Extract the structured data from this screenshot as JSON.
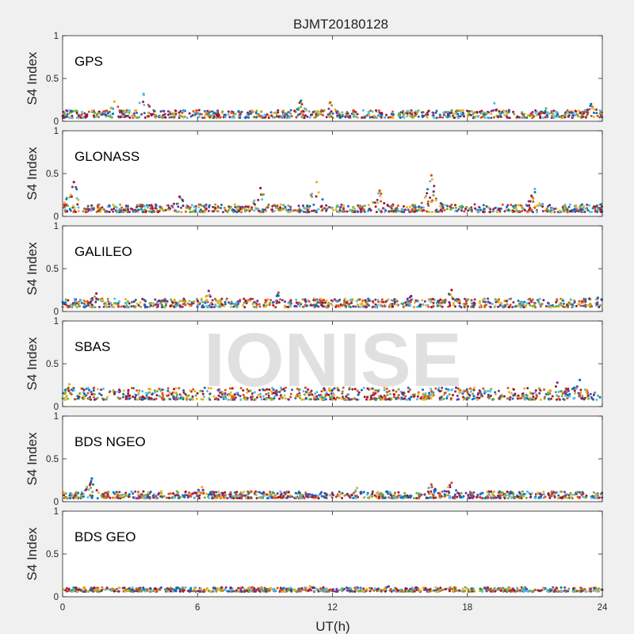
{
  "chart_data": {
    "type": "scatter",
    "title": "BJMT20180128",
    "xlabel": "UT(h)",
    "ylabel": "S4 Index",
    "xlim": [
      0,
      24
    ],
    "ylim": [
      0,
      1
    ],
    "xticks": [
      0,
      6,
      12,
      18,
      24
    ],
    "yticks": [
      0,
      0.5,
      1
    ],
    "grid": false,
    "watermark": "IONISE",
    "panels": [
      {
        "label": "GPS",
        "baseline_range": [
          0.04,
          0.13
        ],
        "peaks": [
          [
            3.6,
            0.32
          ],
          [
            2.3,
            0.23
          ],
          [
            11.9,
            0.22
          ],
          [
            19.2,
            0.21
          ],
          [
            10.6,
            0.24
          ],
          [
            21.5,
            0.15
          ],
          [
            23.5,
            0.2
          ]
        ]
      },
      {
        "label": "GLONASS",
        "baseline_range": [
          0.05,
          0.14
        ],
        "peaks": [
          [
            0.5,
            0.4
          ],
          [
            16.4,
            0.48
          ],
          [
            8.8,
            0.33
          ],
          [
            14.1,
            0.3
          ],
          [
            11.3,
            0.4
          ],
          [
            16.5,
            0.29
          ],
          [
            21.0,
            0.32
          ],
          [
            5.2,
            0.23
          ]
        ]
      },
      {
        "label": "GALILEO",
        "baseline_range": [
          0.05,
          0.15
        ],
        "peaks": [
          [
            1.5,
            0.21
          ],
          [
            6.5,
            0.24
          ],
          [
            9.6,
            0.22
          ],
          [
            15.5,
            0.18
          ],
          [
            17.3,
            0.25
          ],
          [
            23.8,
            0.16
          ]
        ]
      },
      {
        "label": "SBAS",
        "baseline_range": [
          0.08,
          0.22
        ],
        "peaks": [
          [
            0.3,
            0.26
          ],
          [
            23.0,
            0.31
          ],
          [
            22.0,
            0.28
          ],
          [
            10.8,
            0.22
          ],
          [
            17.5,
            0.22
          ]
        ]
      },
      {
        "label": "BDS NGEO",
        "baseline_range": [
          0.04,
          0.12
        ],
        "peaks": [
          [
            1.3,
            0.27
          ],
          [
            16.4,
            0.2
          ],
          [
            17.3,
            0.22
          ],
          [
            6.2,
            0.17
          ],
          [
            13.1,
            0.16
          ]
        ]
      },
      {
        "label": "BDS GEO",
        "baseline_range": [
          0.06,
          0.11
        ],
        "peaks": [
          [
            14.5,
            0.12
          ],
          [
            11.0,
            0.12
          ]
        ]
      }
    ],
    "series_colors": [
      "#0072BD",
      "#D95319",
      "#EDB120",
      "#7E2F8E",
      "#77AC30",
      "#4DBEEE",
      "#A2142F"
    ]
  }
}
